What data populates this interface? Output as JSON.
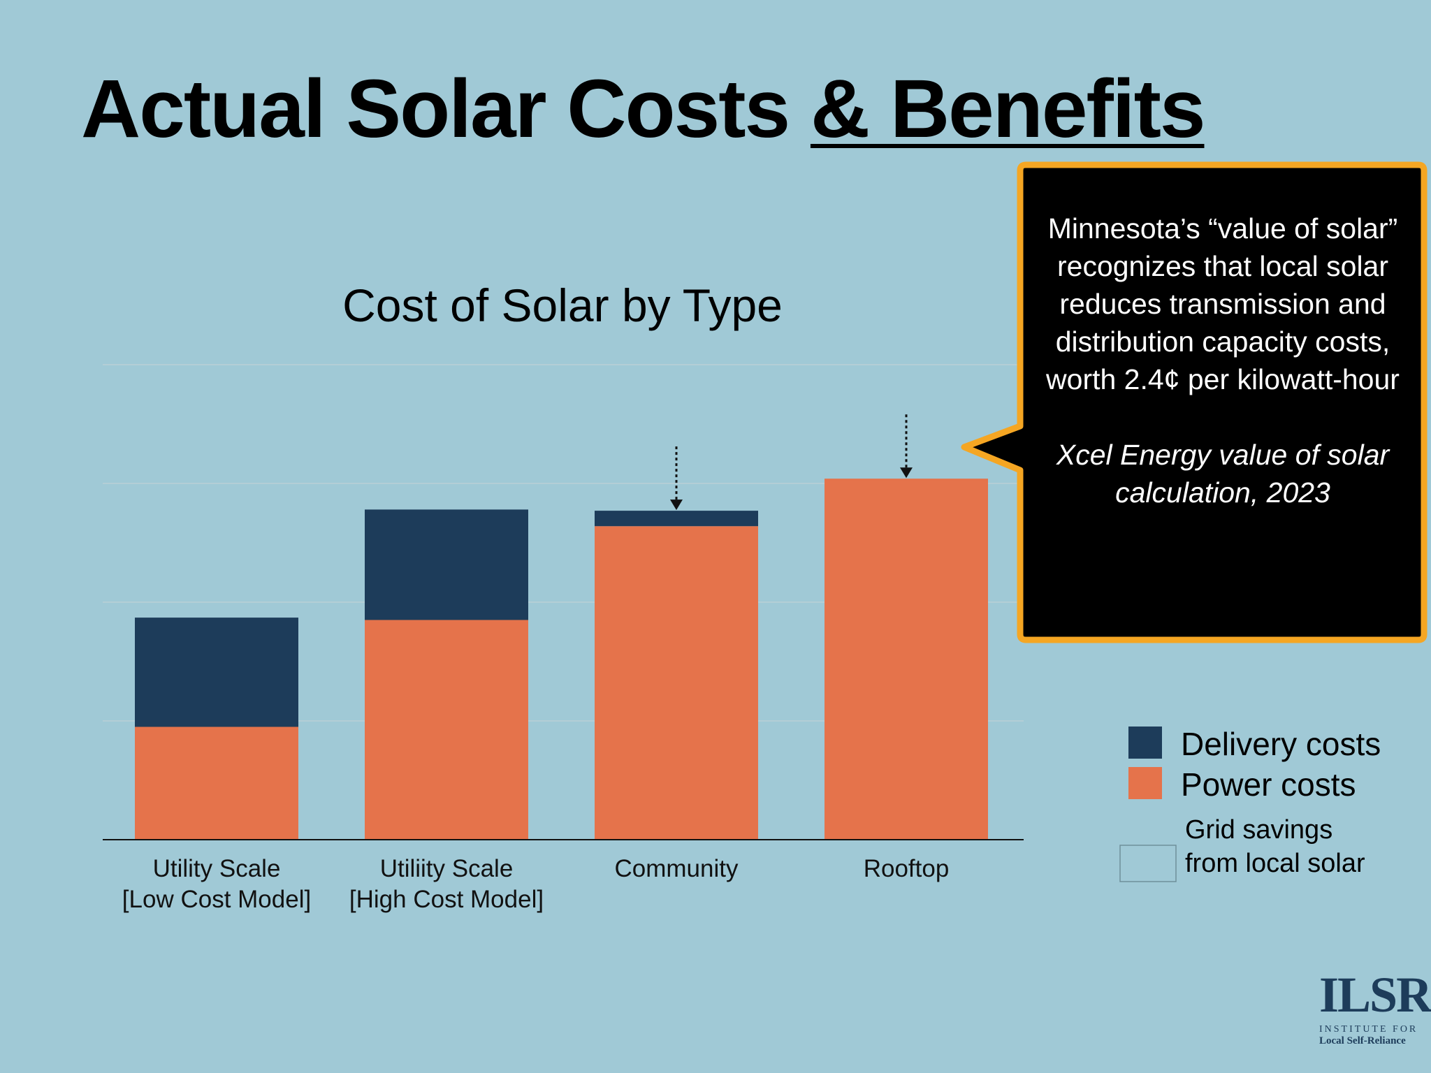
{
  "slide": {
    "title_main": "Actual Solar Costs ",
    "title_underlined": "& Benefits"
  },
  "callout": {
    "text": "Minnesota’s “value of solar” recognizes that local solar reduces transmission and distribution capacity costs, worth 2.4¢ per kilowatt-hour",
    "source": "Xcel Energy value of solar calculation, 2023"
  },
  "legend": {
    "items": [
      {
        "label": "Delivery costs",
        "color": "#1d3c5a"
      },
      {
        "label": "Power costs",
        "color": "#e5734b"
      },
      {
        "label": "Grid savings from local solar",
        "color": "#a0c9d6"
      }
    ]
  },
  "logo": {
    "mark": "ILSR",
    "line1": "INSTITUTE FOR",
    "line2": "Local Self-Reliance"
  },
  "colors": {
    "background": "#a0c9d6",
    "delivery": "#1d3c5a",
    "power": "#e5734b",
    "callout_fill": "#000000",
    "callout_border": "#f5a623"
  },
  "chart_data": {
    "type": "bar",
    "stacked": true,
    "title": "Cost of Solar by Type",
    "categories": [
      [
        "Utility Scale",
        "[Low Cost Model]"
      ],
      [
        "Utiliity Scale",
        "[High Cost Model]"
      ],
      [
        "Community"
      ],
      [
        "Rooftop"
      ]
    ],
    "series": [
      {
        "name": "Power costs",
        "values": [
          0.95,
          1.85,
          2.64,
          3.04
        ]
      },
      {
        "name": "Delivery costs",
        "values": [
          0.92,
          0.93,
          0.13,
          0
        ]
      }
    ],
    "grid_savings_arrows": [
      false,
      false,
      true,
      true
    ],
    "ylim": [
      0,
      4
    ],
    "grid": true,
    "legend_position": "right"
  }
}
